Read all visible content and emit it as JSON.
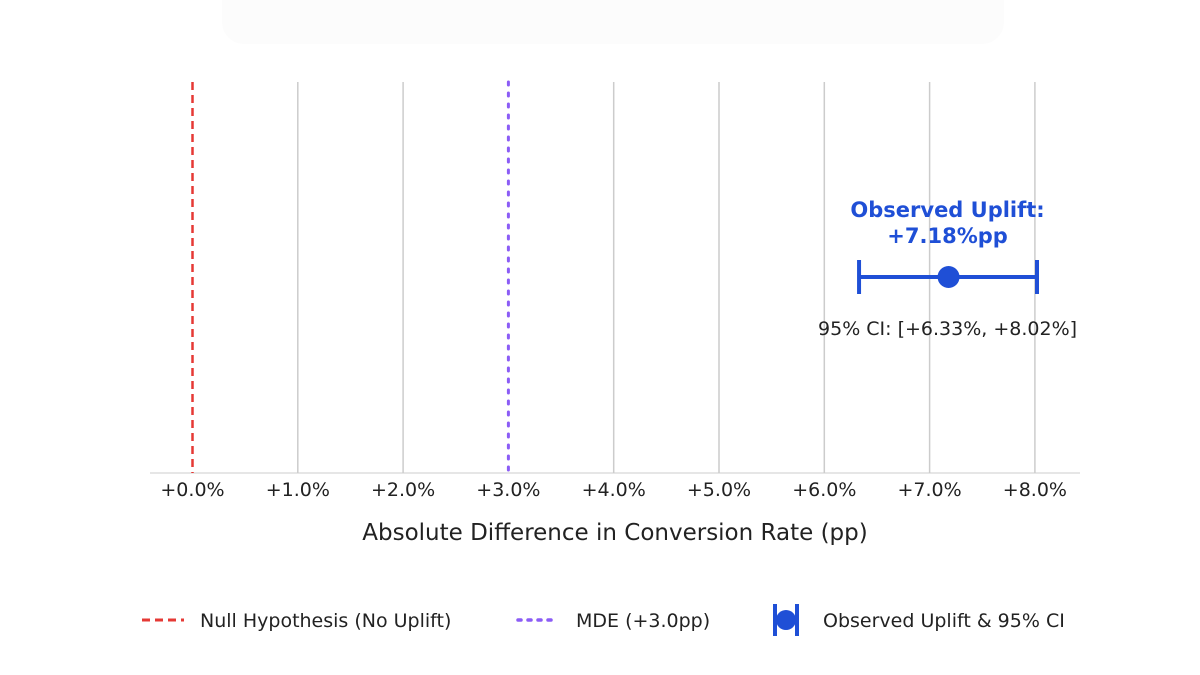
{
  "chart_data": {
    "type": "errorbar",
    "title": "",
    "xlabel": "Absolute Difference in Conversion Rate (pp)",
    "ylabel": "",
    "xlim": [
      -0.4,
      8.45
    ],
    "xticks": [
      0,
      1,
      2,
      3,
      4,
      5,
      6,
      7,
      8
    ],
    "xtick_labels": [
      "+0.0%",
      "+1.0%",
      "+2.0%",
      "+3.0%",
      "+4.0%",
      "+5.0%",
      "+6.0%",
      "+7.0%",
      "+8.0%"
    ],
    "grid": "vertical",
    "reference_lines": [
      {
        "name": "Null Hypothesis (No Uplift)",
        "x": 0,
        "style": "dashed",
        "color": "#e53935"
      },
      {
        "name": "MDE (+3.0pp)",
        "x": 3.0,
        "style": "dotted",
        "color": "#8b5cf6"
      }
    ],
    "point": {
      "name": "Observed Uplift & 95% CI",
      "value": 7.18,
      "ci_low": 6.33,
      "ci_high": 8.02,
      "color": "#1f4fd6"
    },
    "annotations": {
      "title_line1": "Observed Uplift:",
      "title_line2": "+7.18%pp",
      "ci_text": "95% CI: [+6.33%, +8.02%]"
    },
    "legend": {
      "placement": "bottom",
      "entries": [
        "Null Hypothesis (No Uplift)",
        "MDE (+3.0pp)",
        "Observed Uplift & 95% CI"
      ]
    }
  }
}
